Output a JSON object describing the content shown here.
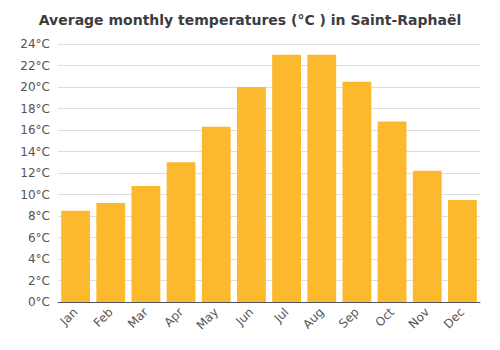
{
  "chart_data": {
    "type": "bar",
    "title": "Average monthly temperatures (°C ) in Saint-Raphaël",
    "categories": [
      "Jan",
      "Feb",
      "Mar",
      "Apr",
      "May",
      "Jun",
      "Jul",
      "Aug",
      "Sep",
      "Oct",
      "Nov",
      "Dec"
    ],
    "values": [
      8.5,
      9.2,
      10.8,
      13.0,
      16.3,
      20.0,
      23.0,
      23.0,
      20.5,
      16.8,
      12.2,
      9.5
    ],
    "color": "#FDB92E",
    "ylim": [
      0,
      24
    ],
    "yticks": [
      {
        "value": 0,
        "label": "0°C"
      },
      {
        "value": 2,
        "label": "2°C"
      },
      {
        "value": 4,
        "label": "4°C"
      },
      {
        "value": 6,
        "label": "6°C"
      },
      {
        "value": 8,
        "label": "8°C"
      },
      {
        "value": 10,
        "label": "10°C"
      },
      {
        "value": 12,
        "label": "12°C"
      },
      {
        "value": 14,
        "label": "14°C"
      },
      {
        "value": 16,
        "label": "16°C"
      },
      {
        "value": 18,
        "label": "18°C"
      },
      {
        "value": 20,
        "label": "20°C"
      },
      {
        "value": 22,
        "label": "22°C"
      },
      {
        "value": 24,
        "label": "24°C"
      }
    ],
    "grid": true
  }
}
